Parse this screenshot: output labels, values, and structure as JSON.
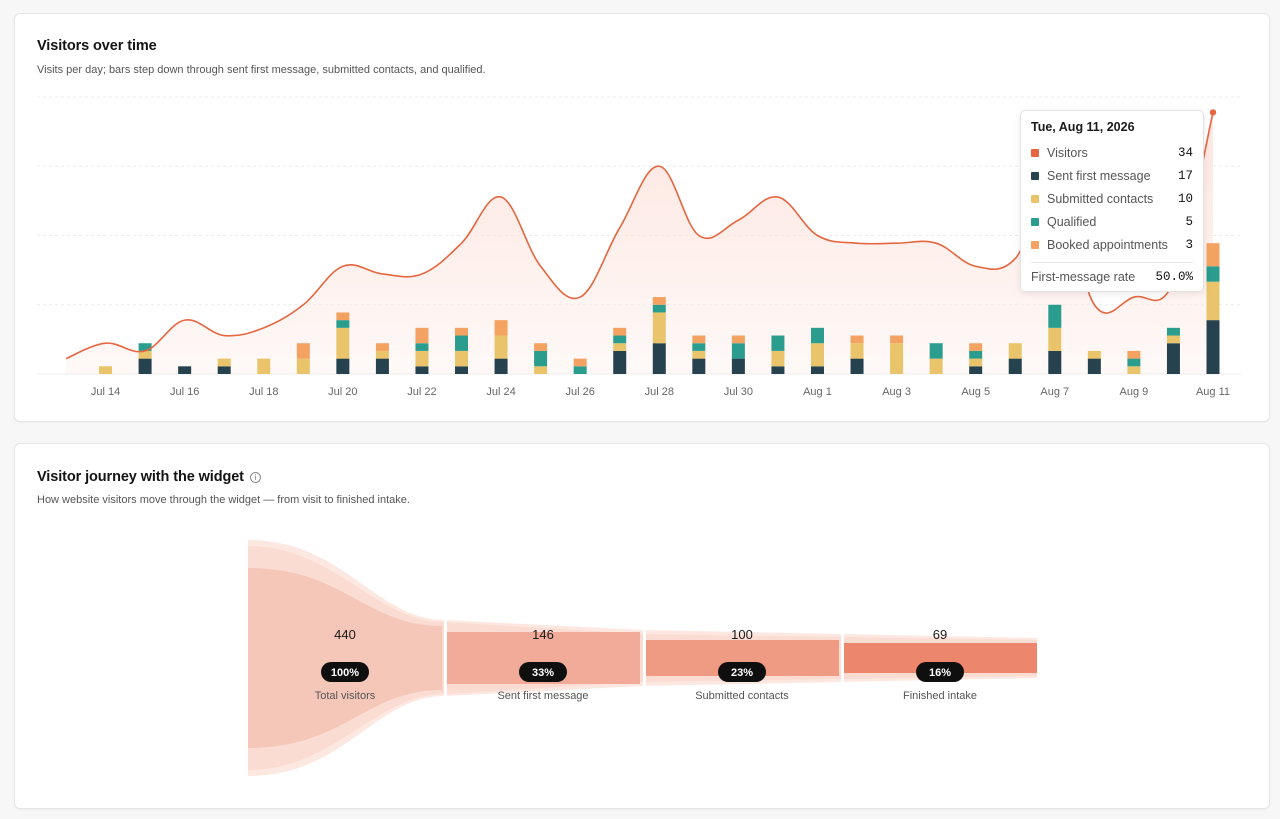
{
  "top_card": {
    "title": "Visitors over time",
    "subtitle": "Visits per day; bars step down through sent first message, submitted contacts, and qualified."
  },
  "colors": {
    "visitors": "#e5663f",
    "sent_first_message": "#26424f",
    "submitted_contacts": "#e9c46a",
    "qualified": "#2a9d8f",
    "booked_appointments": "#f4a261",
    "area_fill": "#fde6e0"
  },
  "tooltip": {
    "date": "Tue, Aug 11, 2026",
    "rows": [
      {
        "label": "Visitors",
        "value": "34",
        "color": "#e5663f"
      },
      {
        "label": "Sent first message",
        "value": "17",
        "color": "#26424f"
      },
      {
        "label": "Submitted contacts",
        "value": "10",
        "color": "#e9c46a"
      },
      {
        "label": "Qualified",
        "value": "5",
        "color": "#2a9d8f"
      },
      {
        "label": "Booked appointments",
        "value": "3",
        "color": "#f4a261"
      }
    ],
    "rate_label": "First-message rate",
    "rate_value": "50.0%"
  },
  "bottom_card": {
    "title": "Visitor journey with the widget",
    "subtitle": "How website visitors move through the widget — from visit to finished intake."
  },
  "chart_data": [
    {
      "type": "bar",
      "x_ticks": [
        "Jul 14",
        "Jul 16",
        "Jul 18",
        "Jul 20",
        "Jul 22",
        "Jul 24",
        "Jul 26",
        "Jul 28",
        "Jul 30",
        "Aug 1",
        "Aug 3",
        "Aug 5",
        "Aug 7",
        "Aug 9",
        "Aug 11"
      ],
      "x": [
        "Jul 13",
        "Jul 14",
        "Jul 15",
        "Jul 16",
        "Jul 17",
        "Jul 18",
        "Jul 19",
        "Jul 20",
        "Jul 21",
        "Jul 22",
        "Jul 23",
        "Jul 24",
        "Jul 25",
        "Jul 26",
        "Jul 27",
        "Jul 28",
        "Jul 29",
        "Jul 30",
        "Jul 31",
        "Aug 1",
        "Aug 2",
        "Aug 3",
        "Aug 4",
        "Aug 5",
        "Aug 6",
        "Aug 7",
        "Aug 8",
        "Aug 9",
        "Aug 10",
        "Aug 11"
      ],
      "ylim": [
        0,
        36
      ],
      "grid": true,
      "series": [
        {
          "name": "Visitors",
          "type": "line",
          "values": [
            2,
            4,
            3,
            7,
            5,
            6,
            9,
            14,
            13,
            13,
            17,
            23,
            14,
            10,
            19,
            27,
            18,
            20,
            23,
            18,
            17,
            17,
            17,
            14,
            15,
            25,
            9,
            10,
            12,
            34
          ]
        },
        {
          "name": "Sent first message",
          "values": [
            0,
            0,
            2,
            1,
            1,
            0,
            0,
            2,
            2,
            1,
            1,
            2,
            0,
            0,
            3,
            4,
            2,
            2,
            1,
            1,
            2,
            0,
            0,
            1,
            2,
            3,
            2,
            0,
            4,
            7
          ]
        },
        {
          "name": "Submitted contacts",
          "values": [
            0,
            1,
            1,
            0,
            1,
            2,
            2,
            4,
            1,
            2,
            2,
            3,
            1,
            0,
            1,
            4,
            1,
            0,
            2,
            3,
            2,
            4,
            2,
            1,
            2,
            3,
            1,
            1,
            1,
            5
          ]
        },
        {
          "name": "Qualified",
          "values": [
            0,
            0,
            1,
            0,
            0,
            0,
            0,
            1,
            0,
            1,
            2,
            0,
            2,
            1,
            1,
            1,
            1,
            2,
            2,
            2,
            0,
            0,
            2,
            1,
            0,
            3,
            0,
            1,
            1,
            2
          ]
        },
        {
          "name": "Booked appointments",
          "values": [
            0,
            0,
            0,
            0,
            0,
            0,
            2,
            1,
            1,
            2,
            1,
            2,
            1,
            1,
            1,
            1,
            1,
            1,
            0,
            0,
            1,
            1,
            0,
            1,
            0,
            0,
            0,
            1,
            0,
            3
          ]
        }
      ]
    },
    {
      "type": "funnel",
      "stages": [
        {
          "label": "Total visitors",
          "value": "440",
          "percent": "100%"
        },
        {
          "label": "Sent first message",
          "value": "146",
          "percent": "33%"
        },
        {
          "label": "Submitted contacts",
          "value": "100",
          "percent": "23%"
        },
        {
          "label": "Finished intake",
          "value": "69",
          "percent": "16%"
        }
      ]
    }
  ]
}
